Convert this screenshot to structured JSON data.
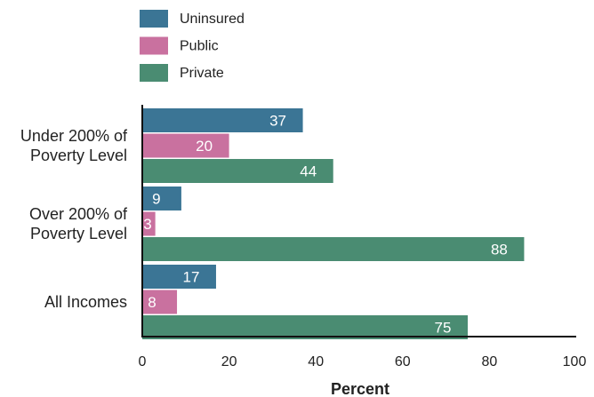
{
  "chart_data": {
    "type": "bar",
    "orientation": "horizontal",
    "categories": [
      [
        "Under 200% of",
        "Poverty Level"
      ],
      [
        "Over 200% of",
        "Poverty Level"
      ],
      [
        "All Incomes"
      ]
    ],
    "series": [
      {
        "name": "Uninsured",
        "color": "#3b7595",
        "values": [
          37,
          9,
          17
        ]
      },
      {
        "name": "Public",
        "color": "#c9719f",
        "values": [
          20,
          3,
          8
        ]
      },
      {
        "name": "Private",
        "color": "#4a8c72",
        "values": [
          44,
          88,
          75
        ]
      }
    ],
    "xlim": [
      0,
      100
    ],
    "xticks": [
      0,
      20,
      40,
      60,
      80,
      100
    ],
    "xlabel": "Percent",
    "ylabel": "",
    "title": "",
    "legend_position": "top-left",
    "grid": false
  }
}
